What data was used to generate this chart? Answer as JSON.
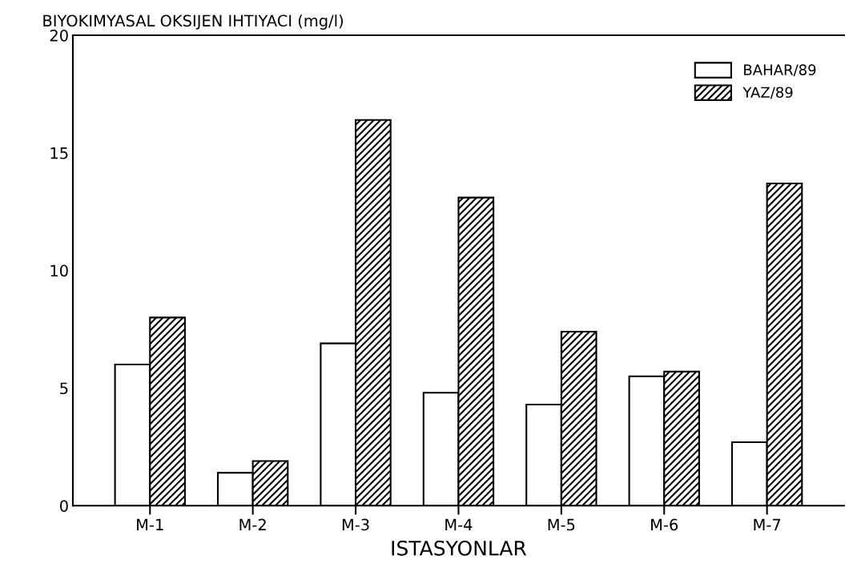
{
  "chart_data": {
    "type": "bar",
    "title": "BIYOKIMYASAL OKSIJEN IHTIYACI (mg/l)",
    "xlabel": "ISTASYONLAR",
    "categories": [
      "M-1",
      "M-2",
      "M-3",
      "M-4",
      "M-5",
      "M-6",
      "M-7"
    ],
    "series": [
      {
        "name": "BAHAR/89",
        "color": "#ffffff",
        "values": [
          6.0,
          1.4,
          6.9,
          4.8,
          4.3,
          5.5,
          2.7
        ]
      },
      {
        "name": "YAZ/89",
        "color": "#000000",
        "values": [
          8.0,
          1.9,
          16.4,
          13.1,
          7.4,
          5.7,
          13.7
        ]
      }
    ],
    "ylim": [
      0,
      20
    ],
    "yticks": [
      0,
      5,
      10,
      15,
      20
    ],
    "grid": false,
    "legend": "top right"
  }
}
